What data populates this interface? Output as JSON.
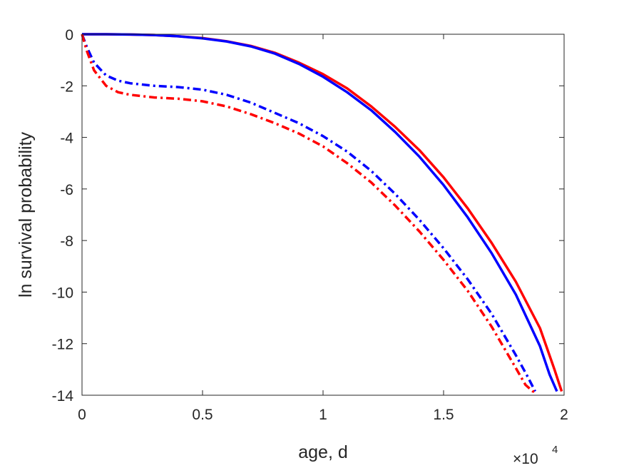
{
  "chart_data": {
    "type": "line",
    "title": "",
    "xlabel": "age, d",
    "ylabel": "ln survival probability",
    "x_multiplier_label": {
      "base": "×10",
      "exponent": "4"
    },
    "xlim": [
      0,
      2
    ],
    "ylim": [
      -14,
      0
    ],
    "xticks": [
      0,
      0.5,
      1,
      1.5,
      2
    ],
    "xtick_labels": [
      "0",
      "0.5",
      "1",
      "1.5",
      "2"
    ],
    "yticks": [
      0,
      -2,
      -4,
      -6,
      -8,
      -10,
      -12,
      -14
    ],
    "ytick_labels": [
      "0",
      "-2",
      "-4",
      "-6",
      "-8",
      "-10",
      "-12",
      "-14"
    ],
    "grid": false,
    "series": [
      {
        "color": "#ff0000",
        "style": "solid",
        "x": [
          0,
          0.1,
          0.2,
          0.3,
          0.4,
          0.5,
          0.6,
          0.7,
          0.8,
          0.9,
          1.0,
          1.1,
          1.2,
          1.3,
          1.4,
          1.5,
          1.6,
          1.7,
          1.8,
          1.9,
          1.96,
          1.99
        ],
        "y": [
          0,
          0,
          -0.01,
          -0.03,
          -0.08,
          -0.15,
          -0.27,
          -0.45,
          -0.72,
          -1.1,
          -1.55,
          -2.1,
          -2.8,
          -3.6,
          -4.5,
          -5.55,
          -6.75,
          -8.1,
          -9.6,
          -11.4,
          -13.0,
          -13.85
        ]
      },
      {
        "color": "#0000ff",
        "style": "solid",
        "x": [
          0,
          0.1,
          0.2,
          0.3,
          0.4,
          0.5,
          0.6,
          0.7,
          0.8,
          0.9,
          1.0,
          1.1,
          1.2,
          1.3,
          1.4,
          1.5,
          1.6,
          1.7,
          1.8,
          1.9,
          1.94,
          1.97
        ],
        "y": [
          0,
          0,
          -0.01,
          -0.03,
          -0.08,
          -0.16,
          -0.28,
          -0.47,
          -0.75,
          -1.15,
          -1.65,
          -2.25,
          -2.95,
          -3.8,
          -4.75,
          -5.85,
          -7.1,
          -8.5,
          -10.1,
          -12.1,
          -13.2,
          -13.85
        ]
      },
      {
        "color": "#0000ff",
        "style": "dashdot",
        "x": [
          0,
          0.02,
          0.05,
          0.1,
          0.15,
          0.2,
          0.3,
          0.4,
          0.5,
          0.6,
          0.7,
          0.8,
          0.9,
          1.0,
          1.1,
          1.2,
          1.3,
          1.4,
          1.5,
          1.6,
          1.7,
          1.8,
          1.85,
          1.88
        ],
        "y": [
          0,
          -0.5,
          -1.1,
          -1.6,
          -1.8,
          -1.9,
          -2.0,
          -2.05,
          -2.15,
          -2.35,
          -2.65,
          -3.05,
          -3.45,
          -3.95,
          -4.55,
          -5.3,
          -6.2,
          -7.2,
          -8.3,
          -9.5,
          -10.85,
          -12.45,
          -13.3,
          -13.85
        ]
      },
      {
        "color": "#ff0000",
        "style": "dashdot",
        "x": [
          0,
          0.02,
          0.05,
          0.1,
          0.15,
          0.2,
          0.3,
          0.4,
          0.5,
          0.6,
          0.7,
          0.8,
          0.9,
          1.0,
          1.1,
          1.2,
          1.3,
          1.4,
          1.5,
          1.6,
          1.7,
          1.8,
          1.84,
          1.87,
          1.89
        ],
        "y": [
          0,
          -0.65,
          -1.4,
          -2.0,
          -2.25,
          -2.35,
          -2.45,
          -2.5,
          -2.6,
          -2.8,
          -3.1,
          -3.45,
          -3.85,
          -4.35,
          -5.0,
          -5.75,
          -6.65,
          -7.65,
          -8.75,
          -9.95,
          -11.35,
          -12.95,
          -13.6,
          -13.85,
          -13.85
        ]
      }
    ]
  }
}
